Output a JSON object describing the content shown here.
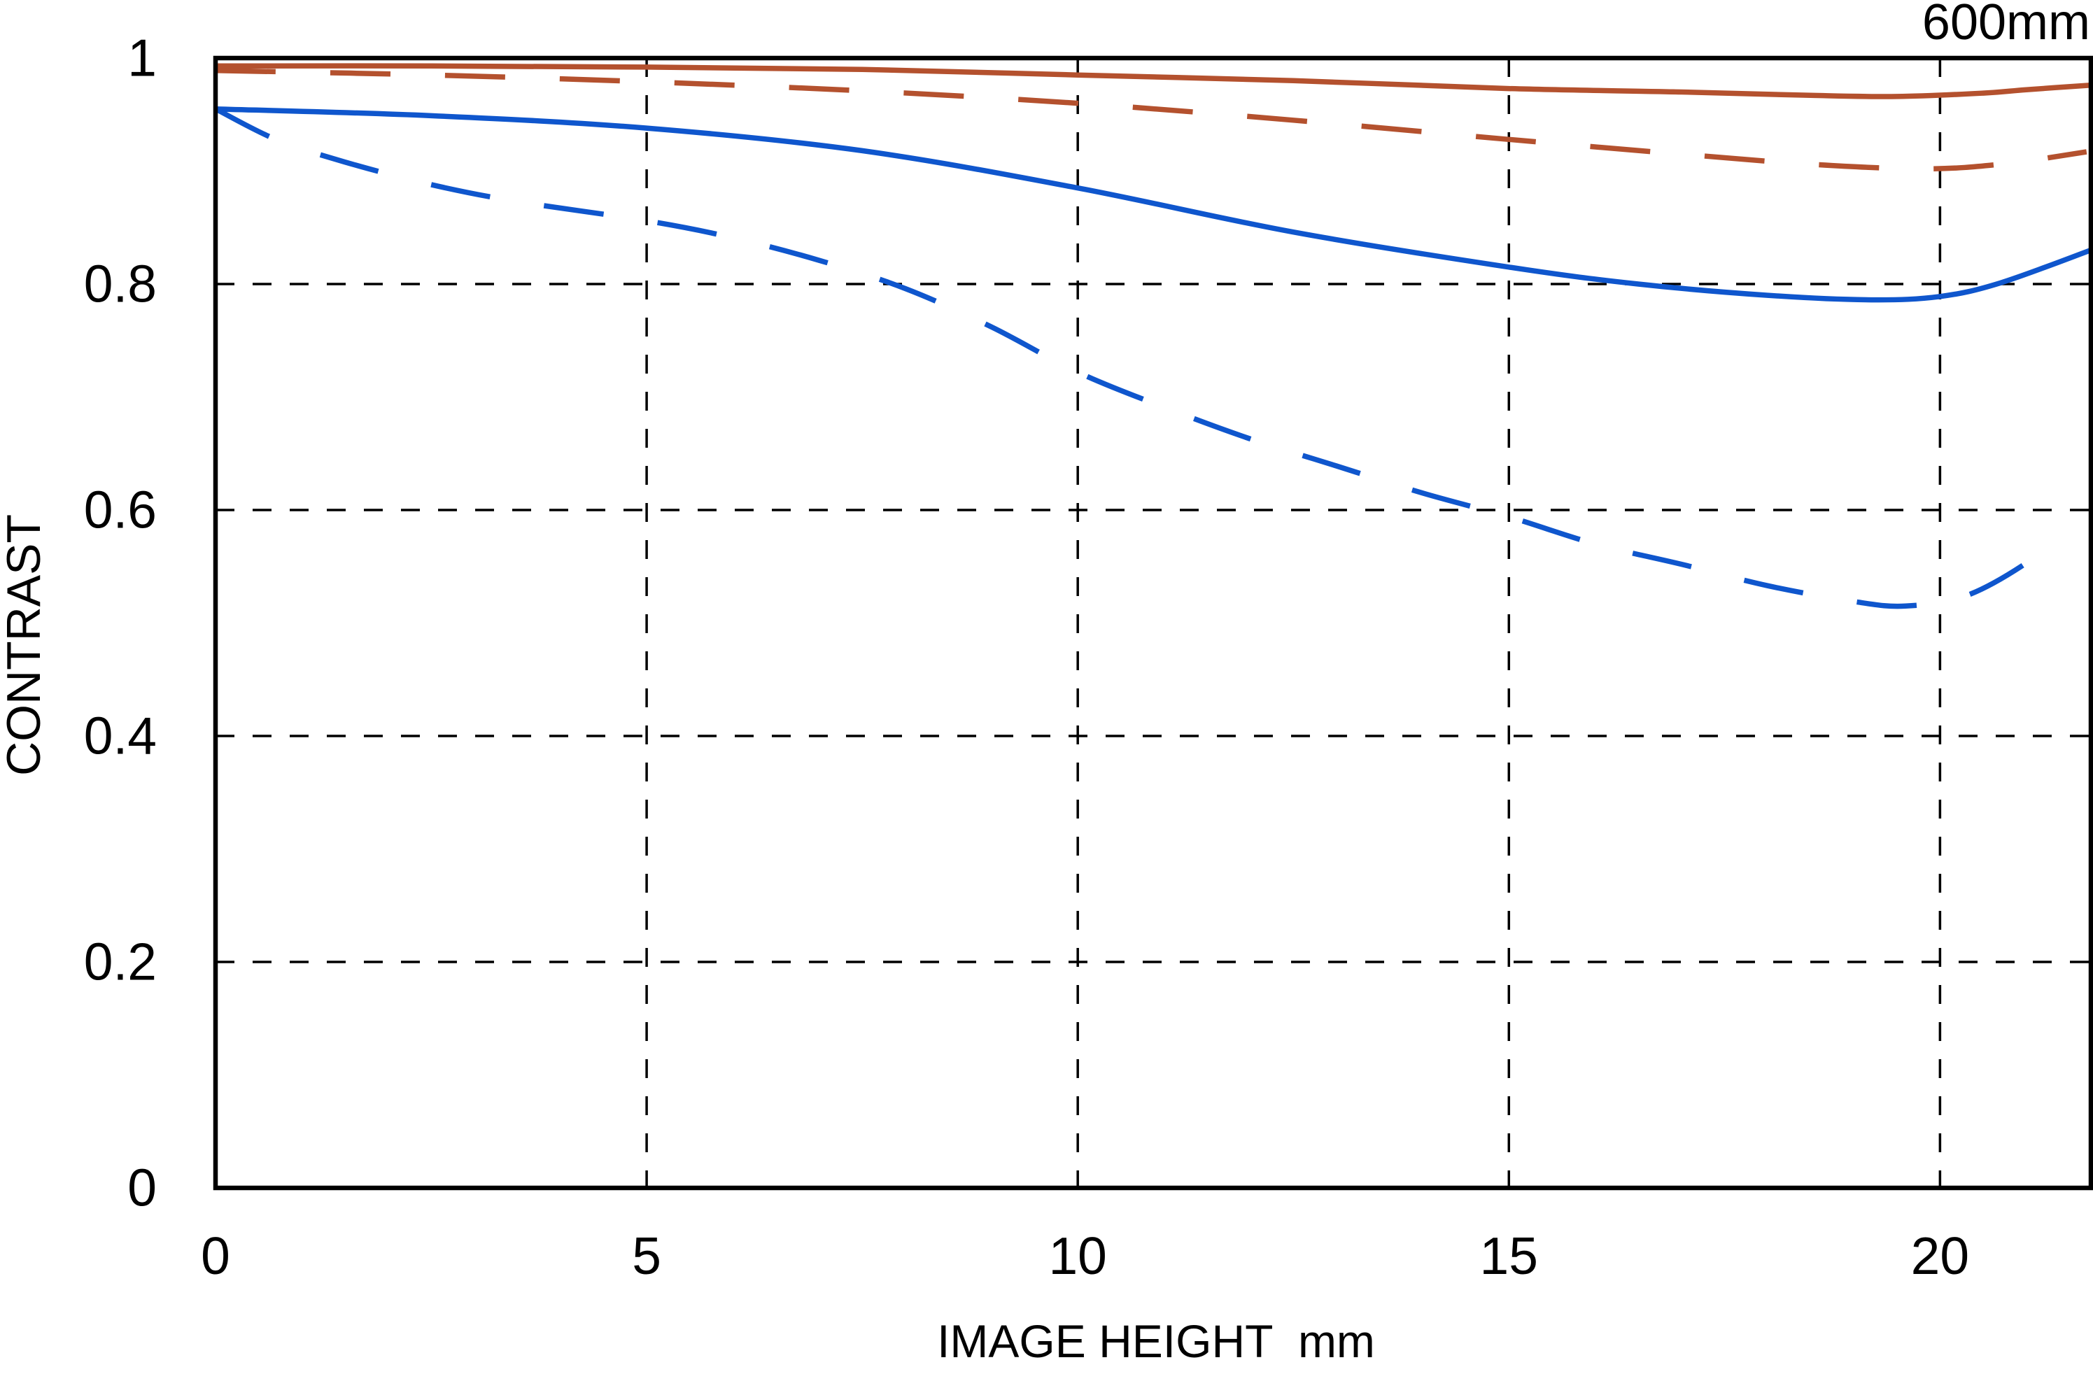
{
  "title": "600mm",
  "axes": {
    "y_label": "CONTRAST",
    "x_label": "IMAGE HEIGHT  mm",
    "y_ticks": [
      {
        "label": "1",
        "value": 1.0
      },
      {
        "label": "0.8",
        "value": 0.8
      },
      {
        "label": "0.6",
        "value": 0.6
      },
      {
        "label": "0.4",
        "value": 0.4
      },
      {
        "label": "0.2",
        "value": 0.2
      },
      {
        "label": "0",
        "value": 0.0
      }
    ],
    "x_ticks": [
      {
        "label": "0",
        "value": 0
      },
      {
        "label": "5",
        "value": 5
      },
      {
        "label": "10",
        "value": 10
      },
      {
        "label": "15",
        "value": 15
      },
      {
        "label": "20",
        "value": 20
      }
    ]
  },
  "colors": {
    "red_curve": "#b4512e",
    "blue_curve": "#0f56cd",
    "axis": "#000000",
    "grid": "#000000",
    "background": "#ffffff"
  },
  "chart_data": {
    "type": "line",
    "title": "600mm",
    "xlabel": "IMAGE HEIGHT mm",
    "ylabel": "CONTRAST",
    "xlim": [
      0,
      21.75
    ],
    "ylim": [
      0,
      1
    ],
    "grid": true,
    "x_gridlines": [
      5,
      10,
      15,
      20
    ],
    "y_gridlines": [
      0.2,
      0.4,
      0.6,
      0.8
    ],
    "legend_position": "none",
    "series": [
      {
        "name": "red-solid",
        "color": "#b4512e",
        "style": "solid",
        "points": [
          [
            0,
            0.993
          ],
          [
            2.5,
            0.993
          ],
          [
            5,
            0.992
          ],
          [
            7.5,
            0.99
          ],
          [
            10,
            0.985
          ],
          [
            12.5,
            0.98
          ],
          [
            15,
            0.973
          ],
          [
            17,
            0.97
          ],
          [
            18.5,
            0.967
          ],
          [
            19.5,
            0.966
          ],
          [
            20.5,
            0.969
          ],
          [
            21,
            0.972
          ],
          [
            21.75,
            0.976
          ]
        ]
      },
      {
        "name": "red-dashed",
        "color": "#b4512e",
        "style": "dashed",
        "points": [
          [
            0,
            0.989
          ],
          [
            2.5,
            0.985
          ],
          [
            5,
            0.979
          ],
          [
            7.5,
            0.971
          ],
          [
            10,
            0.96
          ],
          [
            12.5,
            0.945
          ],
          [
            15,
            0.928
          ],
          [
            17,
            0.915
          ],
          [
            18.5,
            0.906
          ],
          [
            19.8,
            0.902
          ],
          [
            20.7,
            0.906
          ],
          [
            21.7,
            0.917
          ]
        ]
      },
      {
        "name": "blue-solid",
        "color": "#0f56cd",
        "style": "solid",
        "points": [
          [
            0,
            0.955
          ],
          [
            2.5,
            0.949
          ],
          [
            5,
            0.938
          ],
          [
            7.5,
            0.918
          ],
          [
            10,
            0.885
          ],
          [
            12.5,
            0.846
          ],
          [
            15,
            0.815
          ],
          [
            16.5,
            0.8
          ],
          [
            18,
            0.79
          ],
          [
            19.2,
            0.786
          ],
          [
            20,
            0.789
          ],
          [
            20.7,
            0.801
          ],
          [
            21.75,
            0.83
          ]
        ]
      },
      {
        "name": "blue-dashed",
        "color": "#0f56cd",
        "style": "dashed",
        "points": [
          [
            0,
            0.955
          ],
          [
            0.7,
            0.928
          ],
          [
            1.5,
            0.908
          ],
          [
            2.5,
            0.888
          ],
          [
            3.5,
            0.873
          ],
          [
            5,
            0.856
          ],
          [
            6,
            0.841
          ],
          [
            7,
            0.821
          ],
          [
            8,
            0.796
          ],
          [
            9,
            0.762
          ],
          [
            10,
            0.722
          ],
          [
            11,
            0.691
          ],
          [
            12,
            0.663
          ],
          [
            13,
            0.639
          ],
          [
            14,
            0.615
          ],
          [
            15,
            0.594
          ],
          [
            16,
            0.57
          ],
          [
            17,
            0.552
          ],
          [
            18,
            0.533
          ],
          [
            19,
            0.519
          ],
          [
            19.6,
            0.515
          ],
          [
            20.3,
            0.524
          ],
          [
            21,
            0.553
          ],
          [
            21.3,
            0.575
          ]
        ]
      }
    ]
  }
}
